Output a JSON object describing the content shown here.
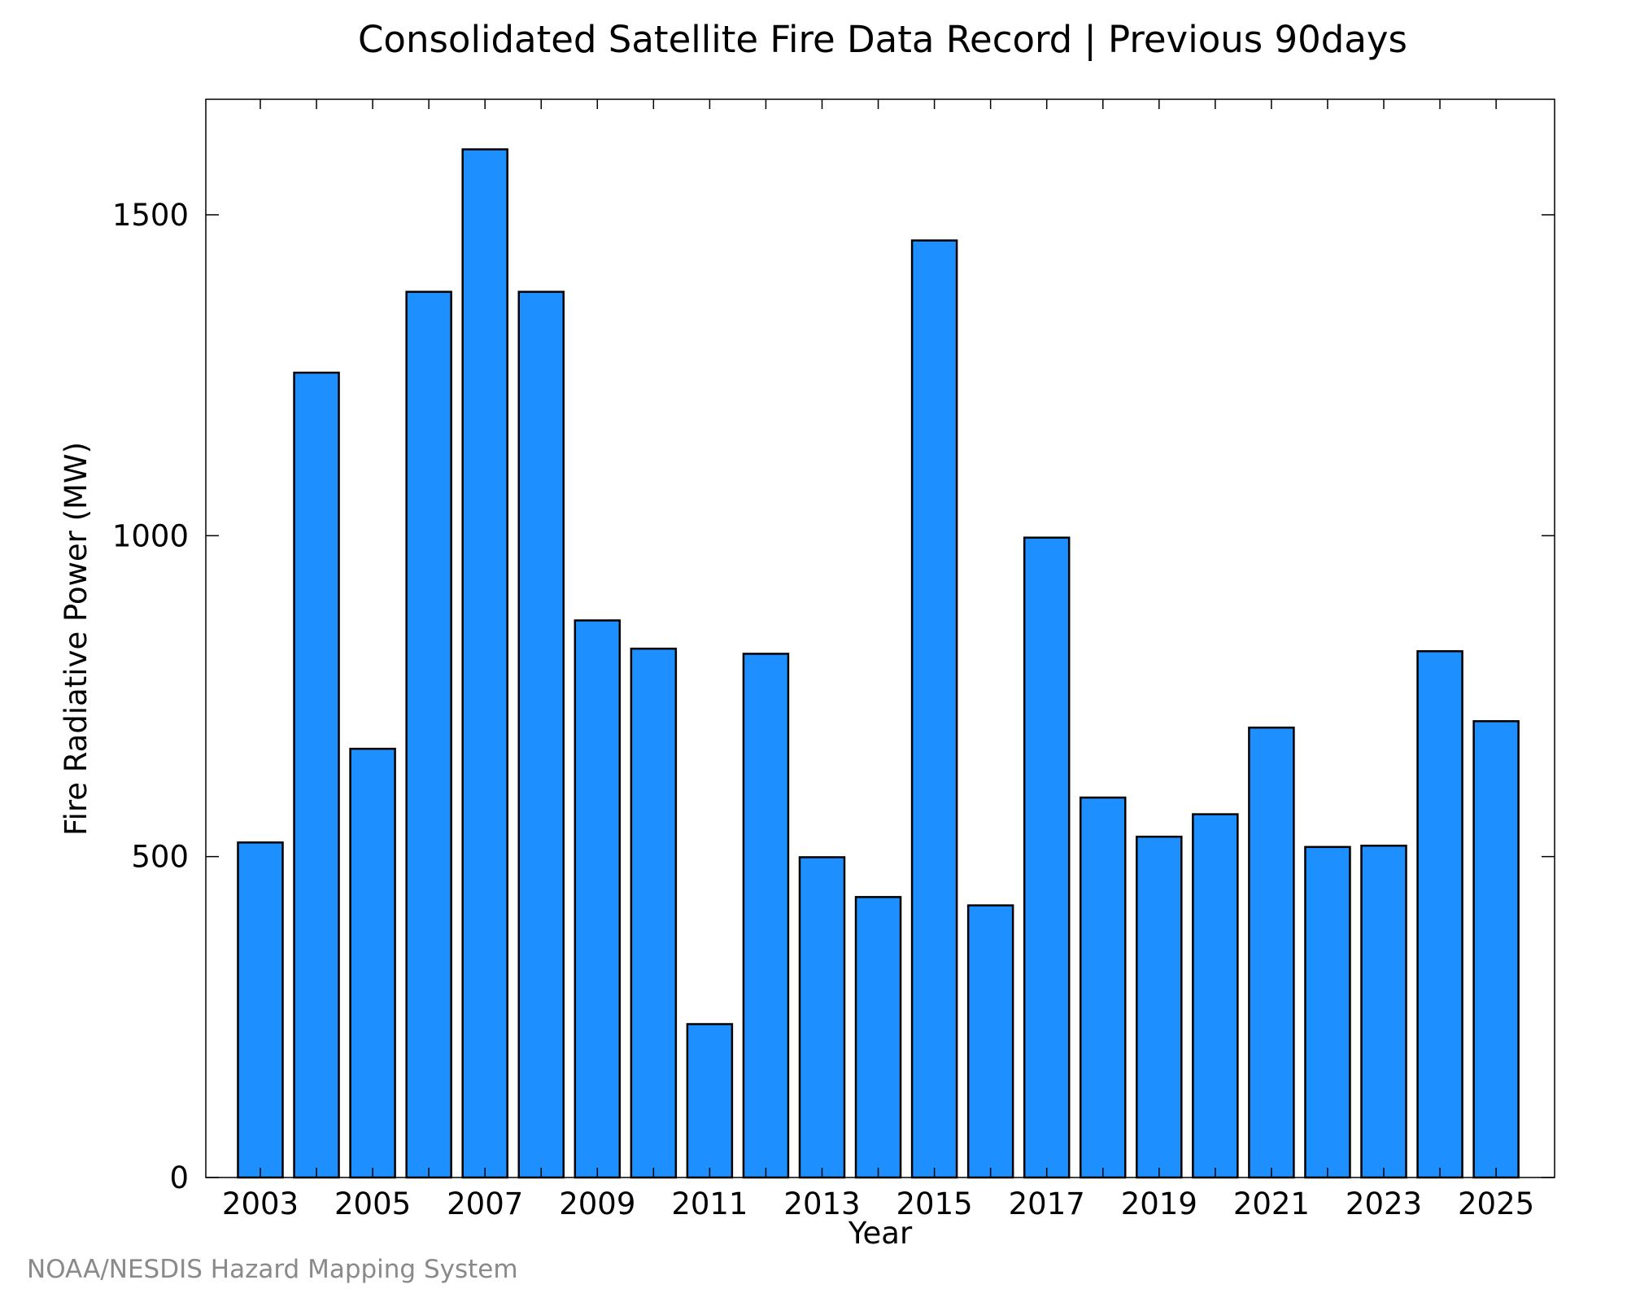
{
  "chart_data": {
    "type": "bar",
    "title": "Consolidated Satellite Fire Data Record | Previous 90days",
    "xlabel": "Year",
    "ylabel": "Fire Radiative Power (MW)",
    "credit": "NOAA/NESDIS Hazard Mapping System",
    "categories": [
      "2003",
      "2004",
      "2005",
      "2006",
      "2007",
      "2008",
      "2009",
      "2010",
      "2011",
      "2012",
      "2013",
      "2014",
      "2015",
      "2016",
      "2017",
      "2018",
      "2019",
      "2020",
      "2021",
      "2022",
      "2023",
      "2024",
      "2025"
    ],
    "x_tick_labels": [
      "2003",
      "2005",
      "2007",
      "2009",
      "2011",
      "2013",
      "2015",
      "2017",
      "2019",
      "2021",
      "2023",
      "2025"
    ],
    "values": [
      522,
      1254,
      668,
      1380,
      1602,
      1380,
      868,
      824,
      239,
      816,
      499,
      437,
      1460,
      424,
      997,
      592,
      531,
      566,
      701,
      515,
      517,
      820,
      711
    ],
    "ylim": [
      0,
      1680
    ],
    "y_ticks": [
      0,
      500,
      1000,
      1500
    ],
    "grid": false,
    "legend": "none",
    "colors": {
      "bar_fill": "#1e8fff",
      "bar_stroke": "#000000",
      "axis": "#000000",
      "credit": "#8a8a8a"
    }
  }
}
